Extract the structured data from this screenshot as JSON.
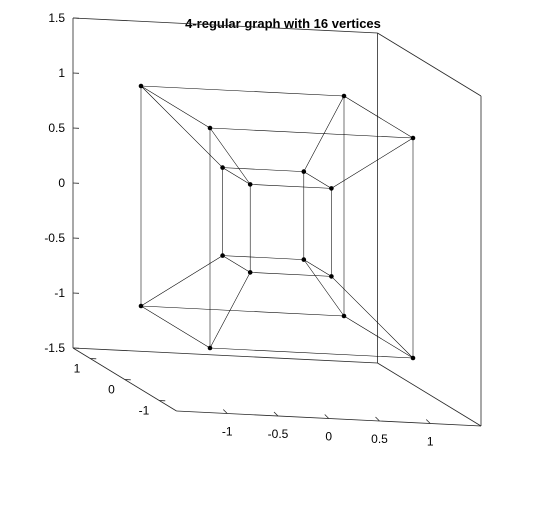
{
  "chart_data": {
    "type": "graph3d",
    "title": "4-regular graph with 16 vertices",
    "xlabel": "",
    "ylabel": "",
    "zlabel": "",
    "grid": false,
    "xlim": [
      -1.5,
      1.5
    ],
    "ylim": [
      -1.5,
      1.5
    ],
    "zlim": [
      -1.5,
      1.5
    ],
    "x_ticks": [
      -1,
      -0.5,
      0,
      0.5,
      1
    ],
    "x_tick_labels": [
      "-1",
      "-0.5",
      "0",
      "0.5",
      "1"
    ],
    "y_ticks": [
      -1,
      0,
      1
    ],
    "y_tick_labels": [
      "-1",
      "0",
      "1"
    ],
    "z_ticks": [
      -1.5,
      -1,
      -0.5,
      0,
      0.5,
      1,
      1.5
    ],
    "z_tick_labels": [
      "-1.5",
      "-1",
      "-0.5",
      "0",
      "0.5",
      "1",
      "1.5"
    ],
    "vertices": [
      [
        -1,
        -1,
        -1
      ],
      [
        1,
        -1,
        -1
      ],
      [
        1,
        1,
        -1
      ],
      [
        -1,
        1,
        -1
      ],
      [
        -1,
        -1,
        1
      ],
      [
        1,
        -1,
        1
      ],
      [
        1,
        1,
        1
      ],
      [
        -1,
        1,
        1
      ],
      [
        -0.4,
        -0.4,
        -0.4
      ],
      [
        0.4,
        -0.4,
        -0.4
      ],
      [
        0.4,
        0.4,
        -0.4
      ],
      [
        -0.4,
        0.4,
        -0.4
      ],
      [
        -0.4,
        -0.4,
        0.4
      ],
      [
        0.4,
        -0.4,
        0.4
      ],
      [
        0.4,
        0.4,
        0.4
      ],
      [
        -0.4,
        0.4,
        0.4
      ]
    ],
    "edges": [
      [
        0,
        1
      ],
      [
        1,
        2
      ],
      [
        2,
        3
      ],
      [
        3,
        0
      ],
      [
        4,
        5
      ],
      [
        5,
        6
      ],
      [
        6,
        7
      ],
      [
        7,
        4
      ],
      [
        0,
        4
      ],
      [
        1,
        5
      ],
      [
        2,
        6
      ],
      [
        3,
        7
      ],
      [
        8,
        9
      ],
      [
        9,
        10
      ],
      [
        10,
        11
      ],
      [
        11,
        8
      ],
      [
        12,
        13
      ],
      [
        13,
        14
      ],
      [
        14,
        15
      ],
      [
        15,
        12
      ],
      [
        8,
        12
      ],
      [
        9,
        13
      ],
      [
        10,
        14
      ],
      [
        11,
        15
      ],
      [
        0,
        8
      ],
      [
        1,
        9
      ],
      [
        2,
        10
      ],
      [
        3,
        11
      ],
      [
        4,
        12
      ],
      [
        5,
        13
      ],
      [
        6,
        14
      ],
      [
        7,
        15
      ]
    ]
  }
}
